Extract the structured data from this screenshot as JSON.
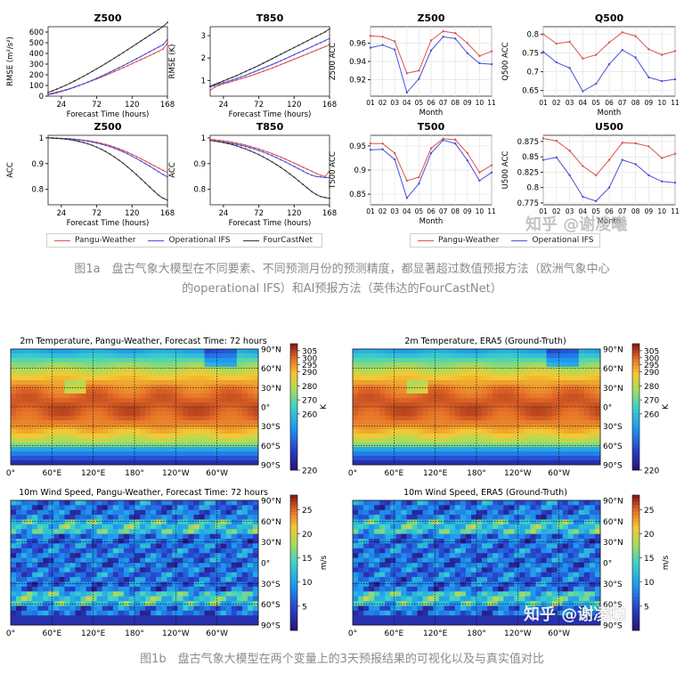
{
  "colors": {
    "pangu": "#d9534f",
    "ifs": "#4a4fd6",
    "fcn": "#333333"
  },
  "legend_left": {
    "items": [
      "Pangu-Weather",
      "Operational IFS",
      "FourCastNet"
    ]
  },
  "legend_right": {
    "items": [
      "Pangu-Weather",
      "Operational IFS"
    ]
  },
  "captions": {
    "fig1a_line1": "图1a　盘古气象大模型在不同要素、不同预测月份的预测精度，都显著超过数值预报方法（欧洲气象中心",
    "fig1a_line2": "的operational IFS）和AI预报方法（英伟达的FourCastNet）",
    "fig1b": "图1b　盘古气象大模型在两个变量上的3天预报结果的可视化以及与真实值对比"
  },
  "watermarks": {
    "top": "知乎 @谢凌曦",
    "bottom": "知乎 @谢凌曦"
  },
  "chart_data": [
    {
      "type": "line",
      "title": "Z500",
      "xlabel": "Forecast Time (hours)",
      "ylabel": "RMSE (m²/s²)",
      "x": [
        6,
        12,
        18,
        24,
        30,
        36,
        42,
        48,
        54,
        60,
        66,
        72,
        78,
        84,
        90,
        96,
        102,
        108,
        114,
        120,
        126,
        132,
        138,
        144,
        150,
        156,
        162,
        168
      ],
      "xticks": [
        24,
        72,
        120,
        168
      ],
      "yticks": [
        0,
        100,
        200,
        300,
        400,
        500,
        600
      ],
      "xlim": [
        6,
        168
      ],
      "ylim": [
        0,
        650
      ],
      "series": [
        {
          "name": "Pangu-Weather",
          "color": "#d9534f",
          "values": [
            20,
            28,
            38,
            48,
            60,
            72,
            86,
            100,
            115,
            130,
            146,
            162,
            178,
            195,
            212,
            230,
            248,
            266,
            285,
            304,
            323,
            342,
            361,
            380,
            400,
            420,
            440,
            498
          ]
        },
        {
          "name": "Operational IFS",
          "color": "#4a4fd6",
          "values": [
            14,
            22,
            32,
            44,
            56,
            70,
            84,
            99,
            115,
            132,
            149,
            167,
            186,
            205,
            225,
            245,
            265,
            286,
            307,
            328,
            350,
            372,
            394,
            416,
            438,
            460,
            482,
            530
          ]
        },
        {
          "name": "FourCastNet",
          "color": "#333333",
          "values": [
            35,
            50,
            66,
            84,
            102,
            122,
            142,
            164,
            186,
            209,
            232,
            256,
            280,
            305,
            330,
            356,
            382,
            408,
            435,
            462,
            489,
            516,
            543,
            570,
            597,
            624,
            651,
            690
          ]
        }
      ]
    },
    {
      "type": "line",
      "title": "T850",
      "xlabel": "Forecast Time (hours)",
      "ylabel": "RMSE (K)",
      "x": [
        6,
        12,
        18,
        24,
        30,
        36,
        42,
        48,
        54,
        60,
        66,
        72,
        78,
        84,
        90,
        96,
        102,
        108,
        114,
        120,
        126,
        132,
        138,
        144,
        150,
        156,
        162,
        168
      ],
      "xticks": [
        24,
        72,
        120,
        168
      ],
      "yticks": [
        1,
        2,
        3
      ],
      "xlim": [
        6,
        168
      ],
      "ylim": [
        0.3,
        3.4
      ],
      "series": [
        {
          "name": "Pangu-Weather",
          "color": "#d9534f",
          "values": [
            0.55,
            0.7,
            0.78,
            0.85,
            0.9,
            0.96,
            1.02,
            1.08,
            1.14,
            1.2,
            1.27,
            1.34,
            1.41,
            1.48,
            1.55,
            1.63,
            1.71,
            1.79,
            1.87,
            1.95,
            2.03,
            2.11,
            2.19,
            2.27,
            2.35,
            2.43,
            2.51,
            2.6
          ]
        },
        {
          "name": "Operational IFS",
          "color": "#4a4fd6",
          "values": [
            0.7,
            0.78,
            0.84,
            0.9,
            0.96,
            1.02,
            1.09,
            1.16,
            1.23,
            1.31,
            1.39,
            1.47,
            1.55,
            1.63,
            1.71,
            1.79,
            1.88,
            1.97,
            2.06,
            2.15,
            2.24,
            2.33,
            2.42,
            2.51,
            2.6,
            2.69,
            2.78,
            2.87
          ]
        },
        {
          "name": "FourCastNet",
          "color": "#333333",
          "values": [
            0.75,
            0.82,
            0.9,
            0.98,
            1.06,
            1.14,
            1.22,
            1.31,
            1.4,
            1.49,
            1.58,
            1.67,
            1.77,
            1.87,
            1.97,
            2.07,
            2.17,
            2.27,
            2.37,
            2.47,
            2.57,
            2.67,
            2.77,
            2.87,
            2.97,
            3.07,
            3.17,
            3.3
          ]
        }
      ]
    },
    {
      "type": "line",
      "title": "Z500",
      "xlabel": "Forecast Time (hours)",
      "ylabel": "ACC",
      "x": [
        6,
        12,
        18,
        24,
        30,
        36,
        42,
        48,
        54,
        60,
        66,
        72,
        78,
        84,
        90,
        96,
        102,
        108,
        114,
        120,
        126,
        132,
        138,
        144,
        150,
        156,
        162,
        168
      ],
      "xticks": [
        24,
        72,
        120,
        168
      ],
      "yticks": [
        0.8,
        0.9,
        1.0
      ],
      "xlim": [
        6,
        168
      ],
      "ylim": [
        0.74,
        1.01
      ],
      "series": [
        {
          "name": "Pangu-Weather",
          "color": "#d9534f",
          "values": [
            1.0,
            1.0,
            0.999,
            0.998,
            0.997,
            0.996,
            0.995,
            0.993,
            0.991,
            0.989,
            0.986,
            0.983,
            0.979,
            0.975,
            0.97,
            0.964,
            0.958,
            0.951,
            0.944,
            0.936,
            0.928,
            0.919,
            0.91,
            0.901,
            0.892,
            0.883,
            0.874,
            0.866
          ]
        },
        {
          "name": "Operational IFS",
          "color": "#4a4fd6",
          "values": [
            1.0,
            1.0,
            0.999,
            0.998,
            0.997,
            0.996,
            0.994,
            0.992,
            0.99,
            0.987,
            0.984,
            0.98,
            0.976,
            0.971,
            0.966,
            0.96,
            0.953,
            0.946,
            0.938,
            0.929,
            0.92,
            0.91,
            0.9,
            0.89,
            0.879,
            0.868,
            0.858,
            0.848
          ]
        },
        {
          "name": "FourCastNet",
          "color": "#333333",
          "values": [
            1.0,
            0.999,
            0.998,
            0.997,
            0.995,
            0.993,
            0.99,
            0.986,
            0.982,
            0.977,
            0.971,
            0.964,
            0.956,
            0.947,
            0.937,
            0.926,
            0.914,
            0.901,
            0.887,
            0.872,
            0.857,
            0.841,
            0.825,
            0.809,
            0.793,
            0.777,
            0.766,
            0.758
          ]
        }
      ]
    },
    {
      "type": "line",
      "title": "T850",
      "xlabel": "Forecast Time (hours)",
      "ylabel": "ACC",
      "x": [
        6,
        12,
        18,
        24,
        30,
        36,
        42,
        48,
        54,
        60,
        66,
        72,
        78,
        84,
        90,
        96,
        102,
        108,
        114,
        120,
        126,
        132,
        138,
        144,
        150,
        156,
        162,
        168
      ],
      "xticks": [
        24,
        72,
        120,
        168
      ],
      "yticks": [
        0.8,
        0.9,
        1.0
      ],
      "xlim": [
        6,
        168
      ],
      "ylim": [
        0.74,
        1.01
      ],
      "series": [
        {
          "name": "Pangu-Weather",
          "color": "#d9534f",
          "values": [
            0.995,
            0.993,
            0.991,
            0.989,
            0.986,
            0.983,
            0.98,
            0.976,
            0.972,
            0.967,
            0.962,
            0.957,
            0.951,
            0.945,
            0.939,
            0.932,
            0.925,
            0.918,
            0.91,
            0.902,
            0.894,
            0.886,
            0.878,
            0.87,
            0.862,
            0.855,
            0.85,
            0.872
          ]
        },
        {
          "name": "Operational IFS",
          "color": "#4a4fd6",
          "values": [
            0.99,
            0.988,
            0.986,
            0.984,
            0.981,
            0.978,
            0.975,
            0.971,
            0.967,
            0.962,
            0.957,
            0.951,
            0.945,
            0.938,
            0.931,
            0.923,
            0.915,
            0.907,
            0.898,
            0.889,
            0.88,
            0.871,
            0.862,
            0.855,
            0.85,
            0.848,
            0.846,
            0.845
          ]
        },
        {
          "name": "FourCastNet",
          "color": "#333333",
          "values": [
            0.99,
            0.988,
            0.985,
            0.982,
            0.978,
            0.974,
            0.969,
            0.963,
            0.957,
            0.95,
            0.943,
            0.935,
            0.926,
            0.917,
            0.907,
            0.896,
            0.885,
            0.873,
            0.86,
            0.847,
            0.833,
            0.819,
            0.805,
            0.791,
            0.78,
            0.772,
            0.768,
            0.765
          ]
        }
      ]
    },
    {
      "type": "line",
      "title": "Z500",
      "xlabel": "Month",
      "ylabel": "Z500 ACC",
      "categories": [
        "01",
        "02",
        "03",
        "04",
        "05",
        "06",
        "07",
        "08",
        "09",
        "10",
        "11"
      ],
      "yticks": [
        0.92,
        0.94,
        0.96
      ],
      "ylim": [
        0.902,
        0.978
      ],
      "series": [
        {
          "name": "Pangu-Weather",
          "color": "#d9534f",
          "values": [
            0.968,
            0.967,
            0.962,
            0.927,
            0.93,
            0.963,
            0.973,
            0.971,
            0.96,
            0.946,
            0.951
          ]
        },
        {
          "name": "Operational IFS",
          "color": "#4a4fd6",
          "values": [
            0.955,
            0.958,
            0.953,
            0.906,
            0.921,
            0.952,
            0.967,
            0.965,
            0.949,
            0.938,
            0.937
          ]
        }
      ]
    },
    {
      "type": "line",
      "title": "Q500",
      "xlabel": "Month",
      "ylabel": "Q500 ACC",
      "categories": [
        "01",
        "02",
        "03",
        "04",
        "05",
        "06",
        "07",
        "08",
        "09",
        "10",
        "11"
      ],
      "yticks": [
        0.65,
        0.7,
        0.75,
        0.8
      ],
      "ylim": [
        0.635,
        0.82
      ],
      "series": [
        {
          "name": "Pangu-Weather",
          "color": "#d9534f",
          "values": [
            0.8,
            0.775,
            0.78,
            0.735,
            0.745,
            0.778,
            0.805,
            0.795,
            0.76,
            0.745,
            0.755
          ]
        },
        {
          "name": "Operational IFS",
          "color": "#4a4fd6",
          "values": [
            0.753,
            0.725,
            0.71,
            0.648,
            0.668,
            0.72,
            0.758,
            0.738,
            0.685,
            0.675,
            0.68
          ]
        }
      ]
    },
    {
      "type": "line",
      "title": "T500",
      "xlabel": "Month",
      "ylabel": "T500 ACC",
      "categories": [
        "01",
        "02",
        "03",
        "04",
        "05",
        "06",
        "07",
        "08",
        "09",
        "10",
        "11"
      ],
      "yticks": [
        0.85,
        0.9,
        0.95
      ],
      "ylim": [
        0.828,
        0.972
      ],
      "series": [
        {
          "name": "Pangu-Weather",
          "color": "#d9534f",
          "values": [
            0.955,
            0.955,
            0.935,
            0.878,
            0.885,
            0.945,
            0.965,
            0.963,
            0.935,
            0.895,
            0.91
          ]
        },
        {
          "name": "Operational IFS",
          "color": "#4a4fd6",
          "values": [
            0.942,
            0.943,
            0.922,
            0.842,
            0.872,
            0.935,
            0.962,
            0.955,
            0.92,
            0.878,
            0.895
          ]
        }
      ]
    },
    {
      "type": "line",
      "title": "U500",
      "xlabel": "Month",
      "ylabel": "U500 ACC",
      "categories": [
        "01",
        "02",
        "03",
        "04",
        "05",
        "06",
        "07",
        "08",
        "09",
        "10",
        "11"
      ],
      "yticks": [
        0.775,
        0.8,
        0.825,
        0.85,
        0.875
      ],
      "ylim": [
        0.772,
        0.885
      ],
      "series": [
        {
          "name": "Pangu-Weather",
          "color": "#d9534f",
          "values": [
            0.88,
            0.876,
            0.86,
            0.835,
            0.82,
            0.845,
            0.873,
            0.872,
            0.867,
            0.848,
            0.855
          ]
        },
        {
          "name": "Operational IFS",
          "color": "#4a4fd6",
          "values": [
            0.845,
            0.849,
            0.82,
            0.785,
            0.778,
            0.8,
            0.845,
            0.838,
            0.82,
            0.81,
            0.808
          ]
        }
      ]
    },
    {
      "type": "heatmap",
      "title": "2m Temperature, Pangu-Weather, Forecast Time: 72 hours",
      "xticks": [
        "0°",
        "60°E",
        "120°E",
        "180°",
        "120°W",
        "60°W"
      ],
      "yticks": [
        "90°N",
        "60°N",
        "30°N",
        "0°",
        "30°S",
        "60°S",
        "90°S"
      ],
      "colorbar": {
        "label": "K",
        "ticks": [
          305,
          300,
          295,
          290,
          280,
          270,
          260,
          220
        ],
        "range": [
          220,
          310
        ]
      }
    },
    {
      "type": "heatmap",
      "title": "2m Temperature, ERA5 (Ground-Truth)",
      "xticks": [
        "0°",
        "60°E",
        "120°E",
        "180°",
        "120°W",
        "60°W"
      ],
      "yticks": [
        "90°N",
        "60°N",
        "30°N",
        "0°",
        "30°S",
        "60°S",
        "90°S"
      ],
      "colorbar": {
        "label": "K",
        "ticks": [
          305,
          300,
          295,
          290,
          280,
          270,
          260,
          220
        ],
        "range": [
          220,
          310
        ]
      }
    },
    {
      "type": "heatmap",
      "title": "10m Wind Speed, Pangu-Weather, Forecast Time: 72 hours",
      "xticks": [
        "0°",
        "60°E",
        "120°E",
        "180°",
        "120°W",
        "60°W"
      ],
      "yticks": [
        "90°N",
        "60°N",
        "30°N",
        "0°",
        "30°S",
        "60°S",
        "90°S"
      ],
      "colorbar": {
        "label": "m/s",
        "ticks": [
          25,
          20,
          15,
          10,
          5
        ],
        "range": [
          0,
          28
        ]
      }
    },
    {
      "type": "heatmap",
      "title": "10m Wind Speed, ERA5 (Ground-Truth)",
      "xticks": [
        "0°",
        "60°E",
        "120°E",
        "180°",
        "120°W",
        "60°W"
      ],
      "yticks": [
        "90°N",
        "60°N",
        "30°N",
        "0°",
        "30°S",
        "60°S",
        "90°S"
      ],
      "colorbar": {
        "label": "m/s",
        "ticks": [
          25,
          20,
          15,
          10,
          5
        ],
        "range": [
          0,
          28
        ]
      }
    }
  ]
}
